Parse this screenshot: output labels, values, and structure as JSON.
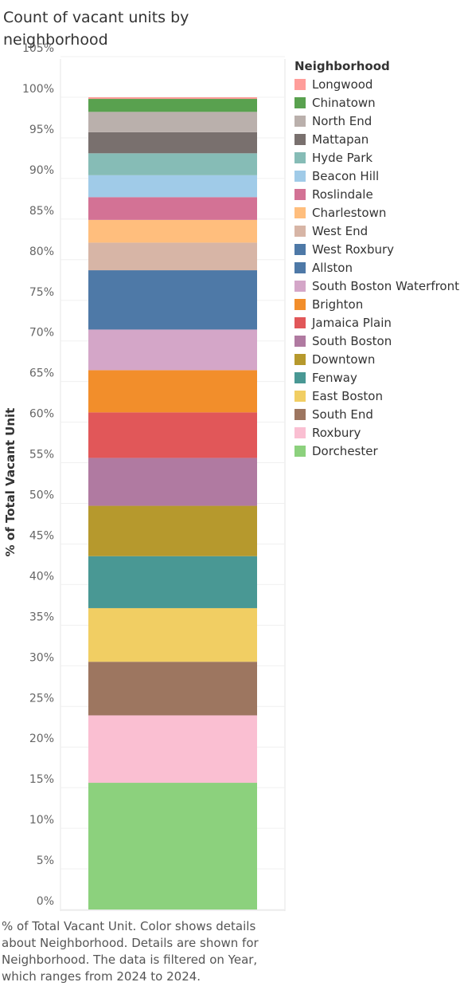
{
  "title": "Count of vacant units by neighborhood",
  "caption": "% of Total Vacant Unit.  Color shows details about Neighborhood.  Details are shown for Neighborhood. The data is filtered on Year, which ranges from 2024 to 2024.",
  "legend_title": "Neighborhood",
  "chart_data": {
    "type": "bar",
    "stacked": true,
    "ylabel": "% of Total Vacant Unit",
    "xlabel": "",
    "ylim": [
      0,
      105
    ],
    "yticks": [
      "0%",
      "5%",
      "10%",
      "15%",
      "20%",
      "25%",
      "30%",
      "35%",
      "40%",
      "45%",
      "50%",
      "55%",
      "60%",
      "65%",
      "70%",
      "75%",
      "80%",
      "85%",
      "90%",
      "95%",
      "100%",
      "105%"
    ],
    "grid": true,
    "legend_position": "right",
    "series": [
      {
        "name": "Dorchester",
        "value": 15.6,
        "color": "#8cd17d"
      },
      {
        "name": "Roxbury",
        "value": 8.3,
        "color": "#fabfd2"
      },
      {
        "name": "South End",
        "value": 6.6,
        "color": "#9d7660"
      },
      {
        "name": "East Boston",
        "value": 6.6,
        "color": "#f1ce63"
      },
      {
        "name": "Fenway",
        "value": 6.4,
        "color": "#499894"
      },
      {
        "name": "Downtown",
        "value": 6.2,
        "color": "#b6992d"
      },
      {
        "name": "South Boston",
        "value": 5.9,
        "color": "#b07aa1"
      },
      {
        "name": "Jamaica Plain",
        "value": 5.6,
        "color": "#e15759"
      },
      {
        "name": "Brighton",
        "value": 5.2,
        "color": "#f28e2b"
      },
      {
        "name": "South Boston Waterfront",
        "value": 5.0,
        "color": "#d4a6c8"
      },
      {
        "name": "Allston",
        "value": 7.3,
        "color": "#4e79a7"
      },
      {
        "name": "West Roxbury",
        "value": 0.0,
        "color": "#4e79a7"
      },
      {
        "name": "West End",
        "value": 3.4,
        "color": "#d7b5a6"
      },
      {
        "name": "Charlestown",
        "value": 2.8,
        "color": "#ffbe7d"
      },
      {
        "name": "Roslindale",
        "value": 2.8,
        "color": "#d37295"
      },
      {
        "name": "Beacon Hill",
        "value": 2.7,
        "color": "#a0cbe8"
      },
      {
        "name": "Hyde Park",
        "value": 2.7,
        "color": "#86bcb6"
      },
      {
        "name": "Mattapan",
        "value": 2.6,
        "color": "#79706e"
      },
      {
        "name": "North End",
        "value": 2.5,
        "color": "#bab0ac"
      },
      {
        "name": "Chinatown",
        "value": 1.6,
        "color": "#59a14f"
      },
      {
        "name": "Longwood",
        "value": 0.2,
        "color": "#ff9d9a"
      }
    ]
  },
  "legend": [
    {
      "label": "Longwood",
      "color": "#ff9d9a"
    },
    {
      "label": "Chinatown",
      "color": "#59a14f"
    },
    {
      "label": "North End",
      "color": "#bab0ac"
    },
    {
      "label": "Mattapan",
      "color": "#79706e"
    },
    {
      "label": "Hyde Park",
      "color": "#86bcb6"
    },
    {
      "label": "Beacon Hill",
      "color": "#a0cbe8"
    },
    {
      "label": "Roslindale",
      "color": "#d37295"
    },
    {
      "label": "Charlestown",
      "color": "#ffbe7d"
    },
    {
      "label": "West End",
      "color": "#d7b5a6"
    },
    {
      "label": "West Roxbury",
      "color": "#4e79a7"
    },
    {
      "label": "Allston",
      "color": "#4e79a7"
    },
    {
      "label": "South Boston Waterfront",
      "color": "#d4a6c8"
    },
    {
      "label": "Brighton",
      "color": "#f28e2b"
    },
    {
      "label": "Jamaica Plain",
      "color": "#e15759"
    },
    {
      "label": "South Boston",
      "color": "#b07aa1"
    },
    {
      "label": "Downtown",
      "color": "#b6992d"
    },
    {
      "label": "Fenway",
      "color": "#499894"
    },
    {
      "label": "East Boston",
      "color": "#f1ce63"
    },
    {
      "label": "South End",
      "color": "#9d7660"
    },
    {
      "label": "Roxbury",
      "color": "#fabfd2"
    },
    {
      "label": "Dorchester",
      "color": "#8cd17d"
    }
  ]
}
